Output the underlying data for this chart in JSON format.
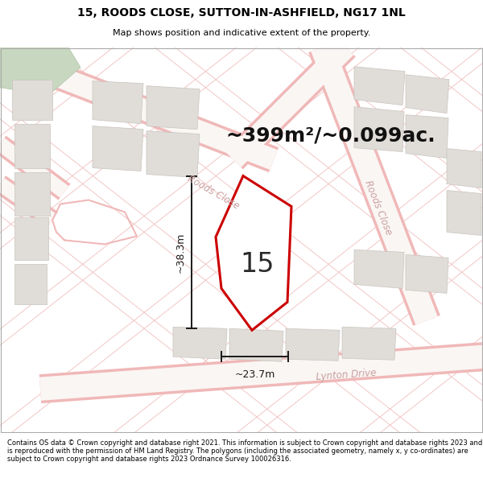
{
  "title_line1": "15, ROODS CLOSE, SUTTON-IN-ASHFIELD, NG17 1NL",
  "title_line2": "Map shows position and indicative extent of the property.",
  "area_text": "~399m²/~0.099ac.",
  "plot_number": "15",
  "width_label": "~23.7m",
  "height_label": "~38.3m",
  "footer_text": "Contains OS data © Crown copyright and database right 2021. This information is subject to Crown copyright and database rights 2023 and is reproduced with the permission of HM Land Registry. The polygons (including the associated geometry, namely x, y co-ordinates) are subject to Crown copyright and database rights 2023 Ordnance Survey 100026316.",
  "map_bg": "#f7f5f3",
  "road_outline_color": "#f0b8b8",
  "road_fill_color": "#f5e8e8",
  "building_fc": "#e0ddd8",
  "building_ec": "#c8c4be",
  "green_fc": "#c8d8c0",
  "green_ec": "#b0c4a8",
  "plot_fill": "#f0ece8",
  "plot_outline": "#cc0000",
  "dim_color": "#1a1a1a",
  "street_color": "#c8a0a0",
  "street_label1": "Roods Close",
  "street_label2": "Roods Close",
  "street_label3": "Lynton Drive",
  "title_fontsize": 10,
  "subtitle_fontsize": 8,
  "area_fontsize": 18,
  "plot_num_fontsize": 24,
  "dim_fontsize": 9,
  "street_fontsize": 8.5,
  "footer_fontsize": 6.0
}
